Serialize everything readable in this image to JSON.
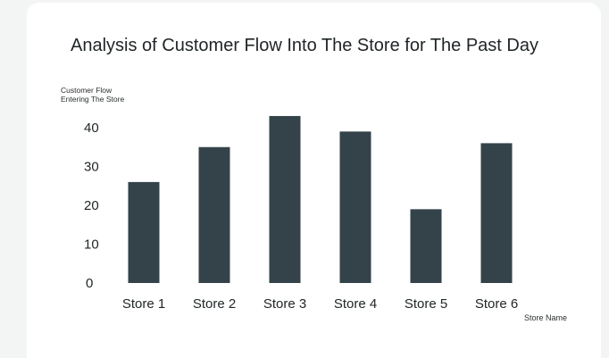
{
  "chart_data": {
    "type": "bar",
    "title": "Analysis of Customer Flow Into The Store for The Past Day",
    "ylabel": "Customer Flow\nEntering The Store",
    "xlabel": "Store Name",
    "categories": [
      "Store 1",
      "Store 2",
      "Store 3",
      "Store 4",
      "Store 5",
      "Store 6"
    ],
    "values": [
      26,
      35,
      43,
      39,
      19,
      36
    ],
    "yticks": [
      0,
      10,
      20,
      30,
      40
    ],
    "ylim": [
      0,
      44
    ],
    "grid": false,
    "bar_color": "#334349"
  }
}
